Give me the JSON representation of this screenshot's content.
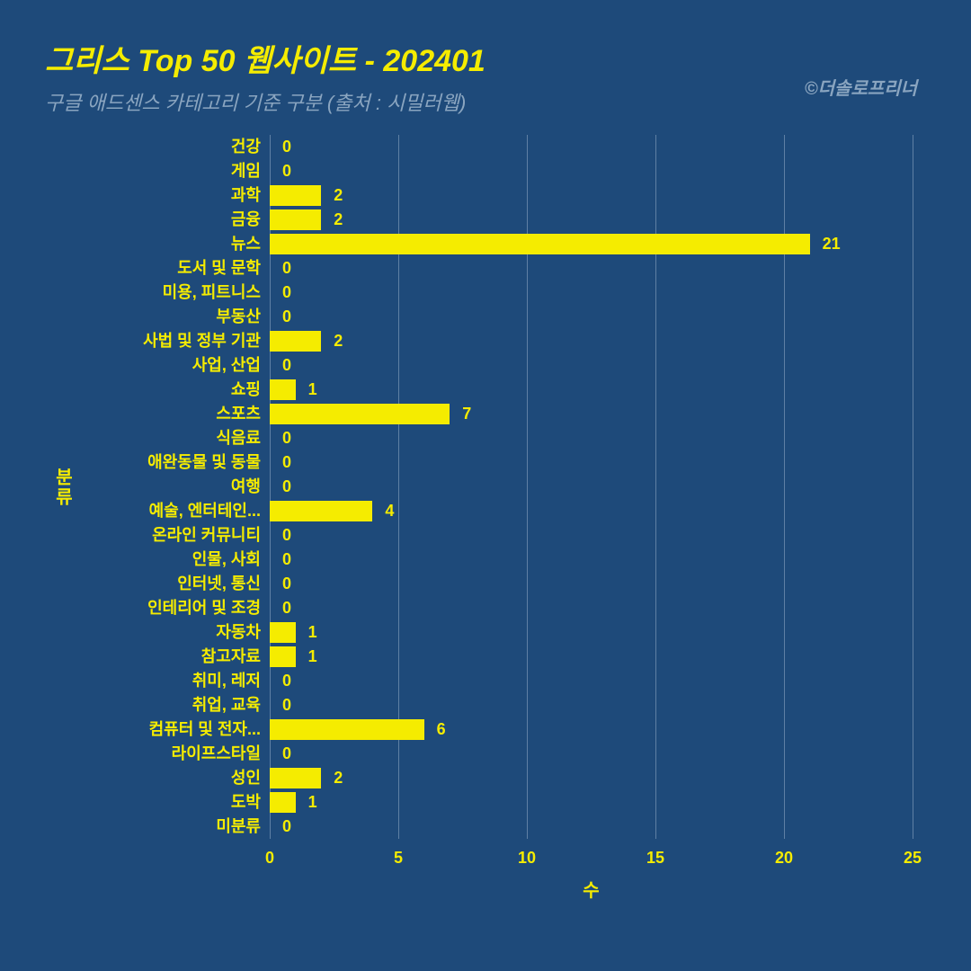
{
  "title": "그리스 Top 50 웹사이트 - 202401",
  "subtitle": "구글 애드센스 카테고리 기준 구분 (출처 : 시밀러웹)",
  "credit": "©더솔로프리너",
  "chart": {
    "type": "horizontal-bar",
    "y_axis_title": "분류",
    "x_axis_title": "수",
    "x_ticks": [
      0,
      5,
      10,
      15,
      20,
      25
    ],
    "x_max": 25,
    "bar_color": "#f5ec00",
    "text_color": "#f5ec00",
    "grid_color": "#8aa5c0",
    "background_color": "#1e4a7a",
    "categories": [
      {
        "label": "건강",
        "value": 0
      },
      {
        "label": "게임",
        "value": 0
      },
      {
        "label": "과학",
        "value": 2
      },
      {
        "label": "금융",
        "value": 2
      },
      {
        "label": "뉴스",
        "value": 21
      },
      {
        "label": "도서 및 문학",
        "value": 0
      },
      {
        "label": "미용, 피트니스",
        "value": 0
      },
      {
        "label": "부동산",
        "value": 0
      },
      {
        "label": "사법 및 정부 기관",
        "value": 2
      },
      {
        "label": "사업, 산업",
        "value": 0
      },
      {
        "label": "쇼핑",
        "value": 1
      },
      {
        "label": "스포츠",
        "value": 7
      },
      {
        "label": "식음료",
        "value": 0
      },
      {
        "label": "애완동물 및 동물",
        "value": 0
      },
      {
        "label": "여행",
        "value": 0
      },
      {
        "label": "예술, 엔터테인...",
        "value": 4
      },
      {
        "label": "온라인 커뮤니티",
        "value": 0
      },
      {
        "label": "인물, 사회",
        "value": 0
      },
      {
        "label": "인터넷, 통신",
        "value": 0
      },
      {
        "label": "인테리어 및 조경",
        "value": 0
      },
      {
        "label": "자동차",
        "value": 1
      },
      {
        "label": "참고자료",
        "value": 1
      },
      {
        "label": "취미, 레저",
        "value": 0
      },
      {
        "label": "취업, 교육",
        "value": 0
      },
      {
        "label": "컴퓨터 및 전자...",
        "value": 6
      },
      {
        "label": "라이프스타일",
        "value": 0
      },
      {
        "label": "성인",
        "value": 2
      },
      {
        "label": "도박",
        "value": 1
      },
      {
        "label": "미분류",
        "value": 0
      }
    ]
  }
}
